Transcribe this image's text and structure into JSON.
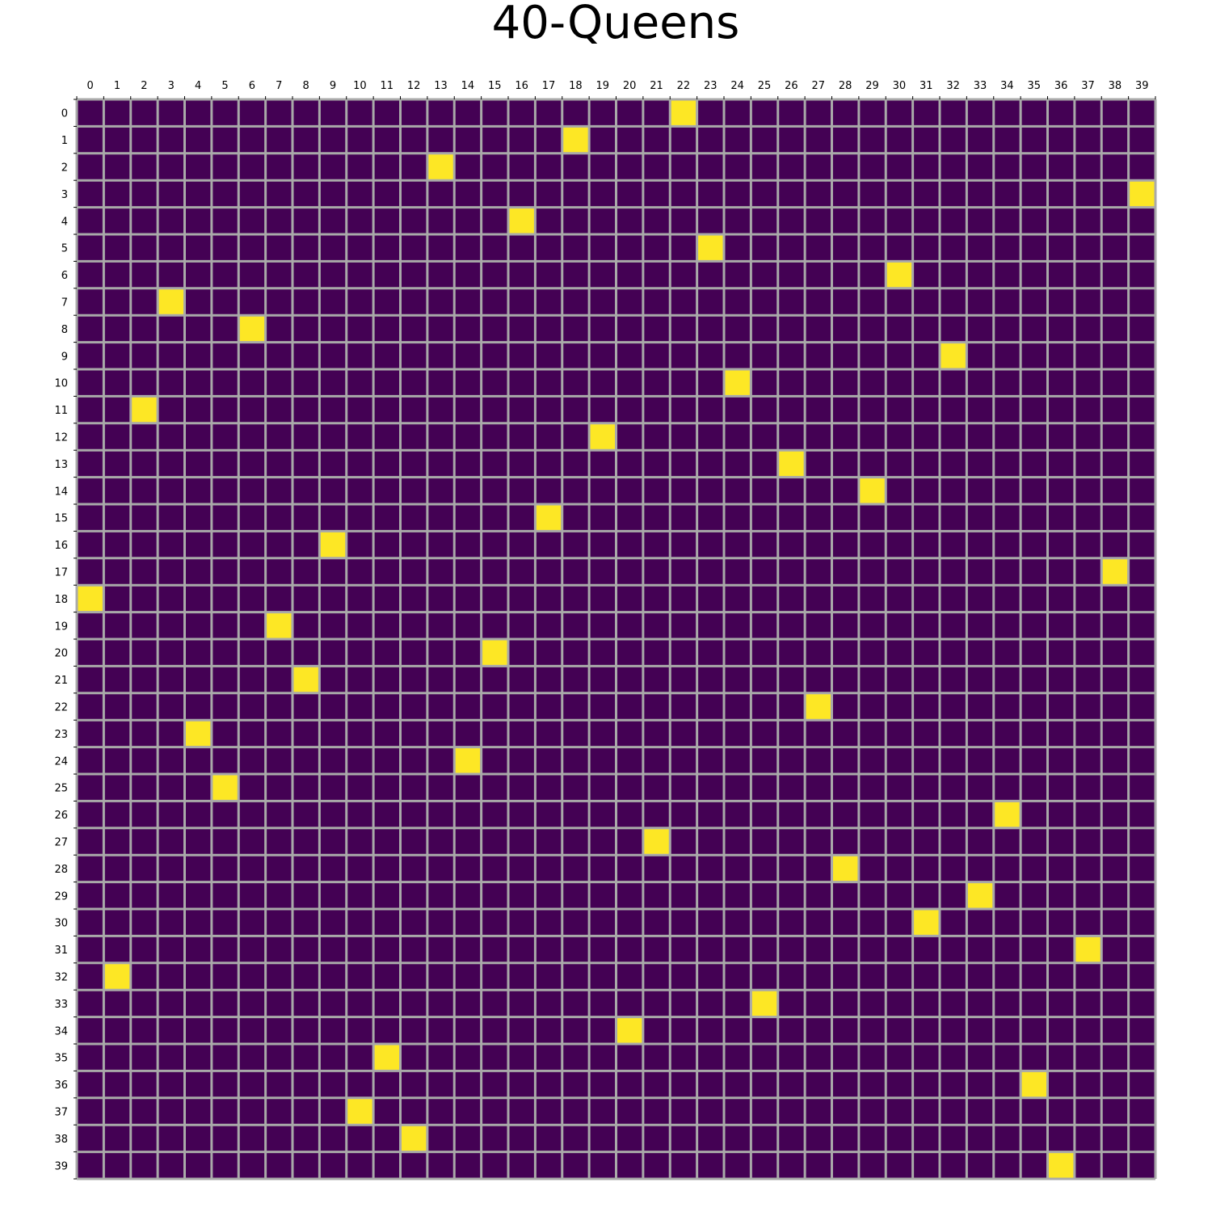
{
  "chart_data": {
    "type": "heatmap",
    "title": "40-Queens",
    "xlabel": "",
    "ylabel": "",
    "n": 40,
    "x_ticks": [
      "0",
      "1",
      "2",
      "3",
      "4",
      "5",
      "6",
      "7",
      "8",
      "9",
      "10",
      "11",
      "12",
      "13",
      "14",
      "15",
      "16",
      "17",
      "18",
      "19",
      "20",
      "21",
      "22",
      "23",
      "24",
      "25",
      "26",
      "27",
      "28",
      "29",
      "30",
      "31",
      "32",
      "33",
      "34",
      "35",
      "36",
      "37",
      "38",
      "39"
    ],
    "y_ticks": [
      "0",
      "1",
      "2",
      "3",
      "4",
      "5",
      "6",
      "7",
      "8",
      "9",
      "10",
      "11",
      "12",
      "13",
      "14",
      "15",
      "16",
      "17",
      "18",
      "19",
      "20",
      "21",
      "22",
      "23",
      "24",
      "25",
      "26",
      "27",
      "28",
      "29",
      "30",
      "31",
      "32",
      "33",
      "34",
      "35",
      "36",
      "37",
      "38",
      "39"
    ],
    "x_axis_position": "top",
    "queen_columns_by_row": [
      22,
      18,
      13,
      39,
      16,
      23,
      30,
      3,
      6,
      32,
      24,
      2,
      19,
      26,
      29,
      17,
      9,
      38,
      0,
      7,
      15,
      8,
      27,
      4,
      14,
      5,
      34,
      21,
      28,
      33,
      31,
      37,
      1,
      25,
      20,
      11,
      35,
      10,
      12,
      36
    ],
    "empty_value": 0,
    "queen_value": 1,
    "colors": {
      "empty": "#440154",
      "queen": "#fde725",
      "grid": "#a9a9a9"
    },
    "grid": true
  }
}
